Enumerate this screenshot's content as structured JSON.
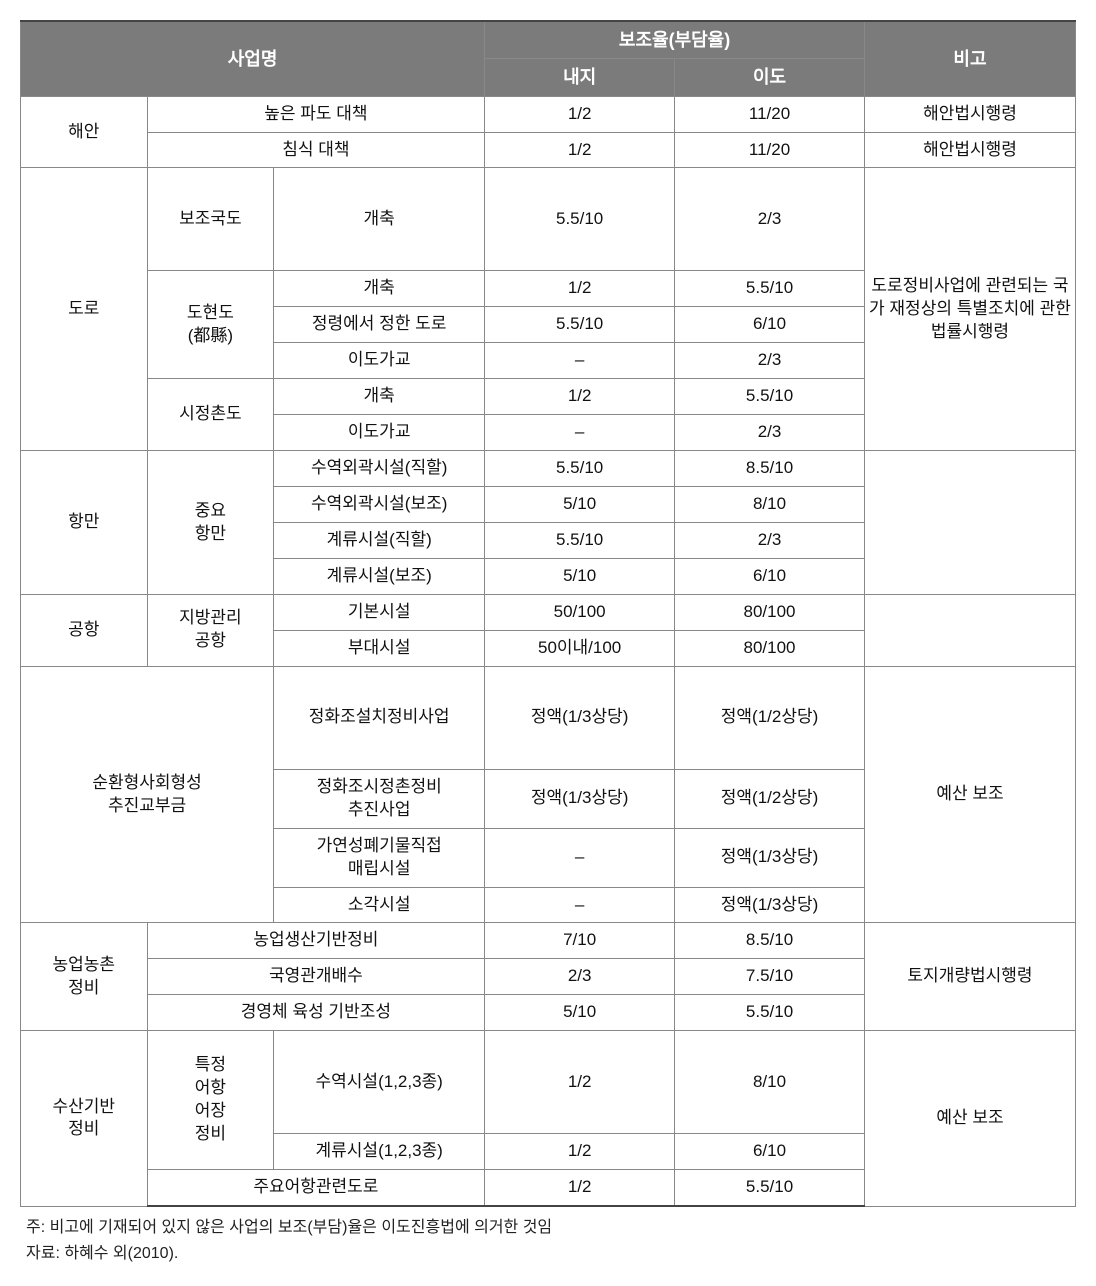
{
  "header": {
    "col1": "사업명",
    "col2": "보조율(부담율)",
    "sub_naeji": "내지",
    "sub_ido": "이도",
    "col3": "비고"
  },
  "haean": {
    "cat": "해안",
    "r1_name": "높은 파도 대책",
    "r1_n": "1/2",
    "r1_i": "11/20",
    "r1_note": "해안법시행령",
    "r2_name": "침식 대책",
    "r2_n": "1/2",
    "r2_i": "11/20",
    "r2_note": "해안법시행령"
  },
  "doro": {
    "cat": "도로",
    "note": "도로정비사업에 관련되는 국가 재정상의 특별조치에 관한 법률시행령",
    "bojo_gukdo": "보조국도",
    "dohyeondo": "도현도\n(都縣)",
    "sijeongchondo": "시정촌도",
    "r1_sub": "개축",
    "r1_n": "5.5/10",
    "r1_i": "2/3",
    "r2_sub": "개축",
    "r2_n": "1/2",
    "r2_i": "5.5/10",
    "r3_sub": "정령에서 정한 도로",
    "r3_n": "5.5/10",
    "r3_i": "6/10",
    "r4_sub": "이도가교",
    "r4_n": "–",
    "r4_i": "2/3",
    "r5_sub": "개축",
    "r5_n": "1/2",
    "r5_i": "5.5/10",
    "r6_sub": "이도가교",
    "r6_n": "–",
    "r6_i": "2/3"
  },
  "hangman": {
    "cat": "항만",
    "jungyo": "중요\n항만",
    "r1_sub": "수역외곽시설(직할)",
    "r1_n": "5.5/10",
    "r1_i": "8.5/10",
    "r2_sub": "수역외곽시설(보조)",
    "r2_n": "5/10",
    "r2_i": "8/10",
    "r3_sub": "계류시설(직할)",
    "r3_n": "5.5/10",
    "r3_i": "2/3",
    "r4_sub": "계류시설(보조)",
    "r4_n": "5/10",
    "r4_i": "6/10"
  },
  "gonghang": {
    "cat": "공항",
    "jibang": "지방관리\n공항",
    "r1_sub": "기본시설",
    "r1_n": "50/100",
    "r1_i": "80/100",
    "r2_sub": "부대시설",
    "r2_n": "50이내/100",
    "r2_i": "80/100"
  },
  "sunhwan": {
    "cat": "순환형사회형성\n추진교부금",
    "note": "예산 보조",
    "r1_sub": "정화조설치정비사업",
    "r1_n": "정액(1/3상당)",
    "r1_i": "정액(1/2상당)",
    "r2_sub": "정화조시정촌정비\n추진사업",
    "r2_n": "정액(1/3상당)",
    "r2_i": "정액(1/2상당)",
    "r3_sub": "가연성폐기물직접\n매립시설",
    "r3_n": "–",
    "r3_i": "정액(1/3상당)",
    "r4_sub": "소각시설",
    "r4_n": "–",
    "r4_i": "정액(1/3상당)"
  },
  "nongeop": {
    "cat": "농업농촌\n정비",
    "note": "토지개량법시행령",
    "r1_sub": "농업생산기반정비",
    "r1_n": "7/10",
    "r1_i": "8.5/10",
    "r2_sub": "국영관개배수",
    "r2_n": "2/3",
    "r2_i": "7.5/10",
    "r3_sub": "경영체 육성 기반조성",
    "r3_n": "5/10",
    "r3_i": "5.5/10"
  },
  "susan": {
    "cat": "수산기반\n정비",
    "note": "예산 보조",
    "teukjeong": "특정\n어항\n어장\n정비",
    "r1_sub": "수역시설(1,2,3종)",
    "r1_n": "1/2",
    "r1_i": "8/10",
    "r2_sub": "계류시설(1,2,3종)",
    "r2_n": "1/2",
    "r2_i": "6/10",
    "r3_sub": "주요어항관련도로",
    "r3_n": "1/2",
    "r3_i": "5.5/10"
  },
  "footer": {
    "note1": "주: 비고에 기재되어 있지 않은 사업의 보조(부담)율은 이도진흥법에 의거한 것임",
    "note2": "자료: 하혜수 외(2010)."
  }
}
